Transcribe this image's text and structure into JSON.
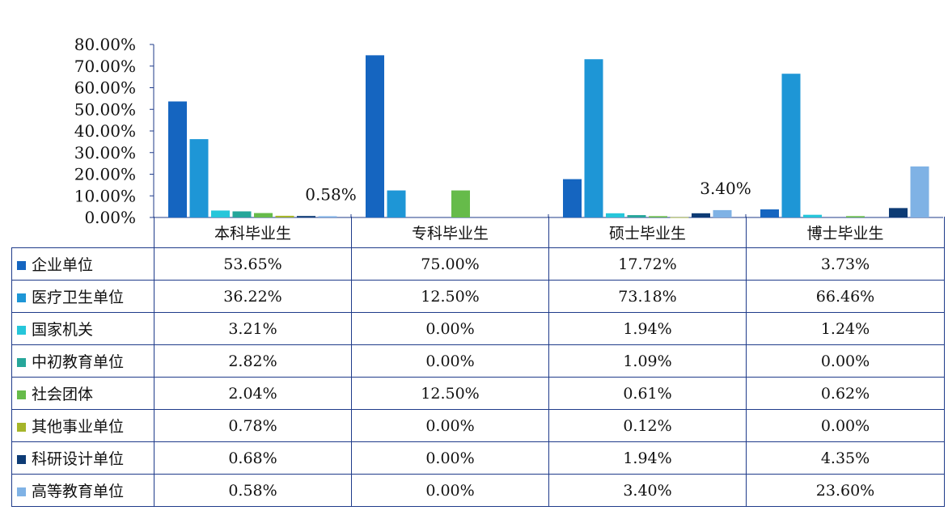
{
  "chart_data": {
    "type": "bar",
    "categories": [
      "本科毕业生",
      "专科毕业生",
      "硕士毕业生",
      "博士毕业生"
    ],
    "ylim": [
      0,
      80
    ],
    "yticks": [
      "0.00%",
      "10.00%",
      "20.00%",
      "30.00%",
      "40.00%",
      "50.00%",
      "60.00%",
      "70.00%",
      "80.00%"
    ],
    "series": [
      {
        "name": "企业单位",
        "color": "#1565c0",
        "values": [
          53.65,
          75.0,
          17.72,
          3.73
        ],
        "labels": [
          "53.65%",
          "75.00%",
          "17.72%",
          "3.73%"
        ]
      },
      {
        "name": "医疗卫生单位",
        "color": "#1e96d6",
        "values": [
          36.22,
          12.5,
          73.18,
          66.46
        ],
        "labels": [
          "36.22%",
          "12.50%",
          "73.18%",
          "66.46%"
        ]
      },
      {
        "name": "国家机关",
        "color": "#26c6da",
        "values": [
          3.21,
          0.0,
          1.94,
          1.24
        ],
        "labels": [
          "3.21%",
          "0.00%",
          "1.94%",
          "1.24%"
        ]
      },
      {
        "name": "中初教育单位",
        "color": "#26a69a",
        "values": [
          2.82,
          0.0,
          1.09,
          0.0
        ],
        "labels": [
          "2.82%",
          "0.00%",
          "1.09%",
          "0.00%"
        ]
      },
      {
        "name": "社会团体",
        "color": "#66bb4a",
        "values": [
          2.04,
          12.5,
          0.61,
          0.62
        ],
        "labels": [
          "2.04%",
          "12.50%",
          "0.61%",
          "0.62%"
        ]
      },
      {
        "name": "其他事业单位",
        "color": "#a5b52a",
        "values": [
          0.78,
          0.0,
          0.12,
          0.0
        ],
        "labels": [
          "0.78%",
          "0.00%",
          "0.12%",
          "0.00%"
        ]
      },
      {
        "name": "科研设计单位",
        "color": "#0d3b75",
        "values": [
          0.68,
          0.0,
          1.94,
          4.35
        ],
        "labels": [
          "0.68%",
          "0.00%",
          "1.94%",
          "4.35%"
        ]
      },
      {
        "name": "高等教育单位",
        "color": "#7fb2e5",
        "values": [
          0.58,
          0.0,
          3.4,
          23.6
        ],
        "labels": [
          "0.58%",
          "0.00%",
          "3.40%",
          "23.60%"
        ]
      }
    ],
    "annotations": [
      {
        "text": "0.58%",
        "series": 7,
        "category": 0
      },
      {
        "text": "3.40%",
        "series": 7,
        "category": 2
      }
    ],
    "legend": "table-left"
  }
}
